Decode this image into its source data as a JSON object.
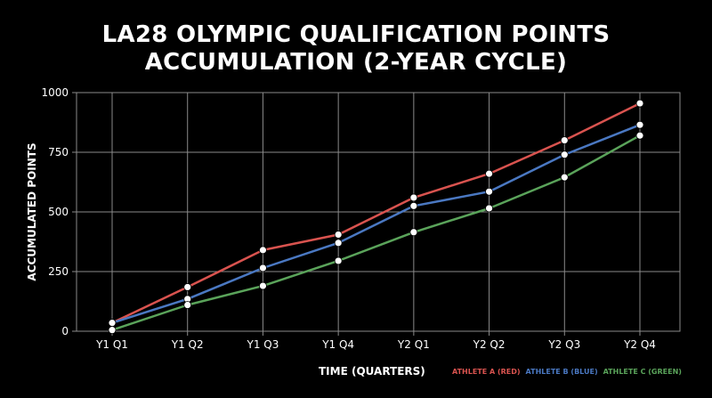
{
  "chart_data": {
    "type": "line",
    "title": "LA28 OLYMPIC QUALIFICATION POINTS ACCUMULATION (2-YEAR CYCLE)",
    "title_lines": [
      "LA28 OLYMPIC QUALIFICATION POINTS",
      "ACCUMULATION (2-YEAR CYCLE)"
    ],
    "xlabel": "TIME (QUARTERS)",
    "ylabel": "ACCUMULATED POINTS",
    "categories": [
      "Y1 Q1",
      "Y1 Q2",
      "Y1 Q3",
      "Y1 Q4",
      "Y2 Q1",
      "Y2 Q2",
      "Y2 Q3",
      "Y2 Q4"
    ],
    "ylim": [
      0,
      1000
    ],
    "yticks": [
      0,
      250,
      500,
      750,
      1000
    ],
    "grid": true,
    "legend_position": "bottom-right",
    "series": [
      {
        "name": "ATHLETE A (RED)",
        "color": "#d9534f",
        "values": [
          35,
          185,
          340,
          405,
          560,
          660,
          800,
          955
        ]
      },
      {
        "name": "ATHLETE B (BLUE)",
        "color": "#4a78c2",
        "values": [
          35,
          135,
          265,
          370,
          525,
          585,
          740,
          865
        ]
      },
      {
        "name": "ATHLETE C (GREEN)",
        "color": "#5aa35a",
        "values": [
          5,
          110,
          190,
          295,
          415,
          515,
          645,
          820
        ]
      }
    ],
    "marker_color": "#ffffff",
    "grid_color": "#8a8a8a"
  }
}
